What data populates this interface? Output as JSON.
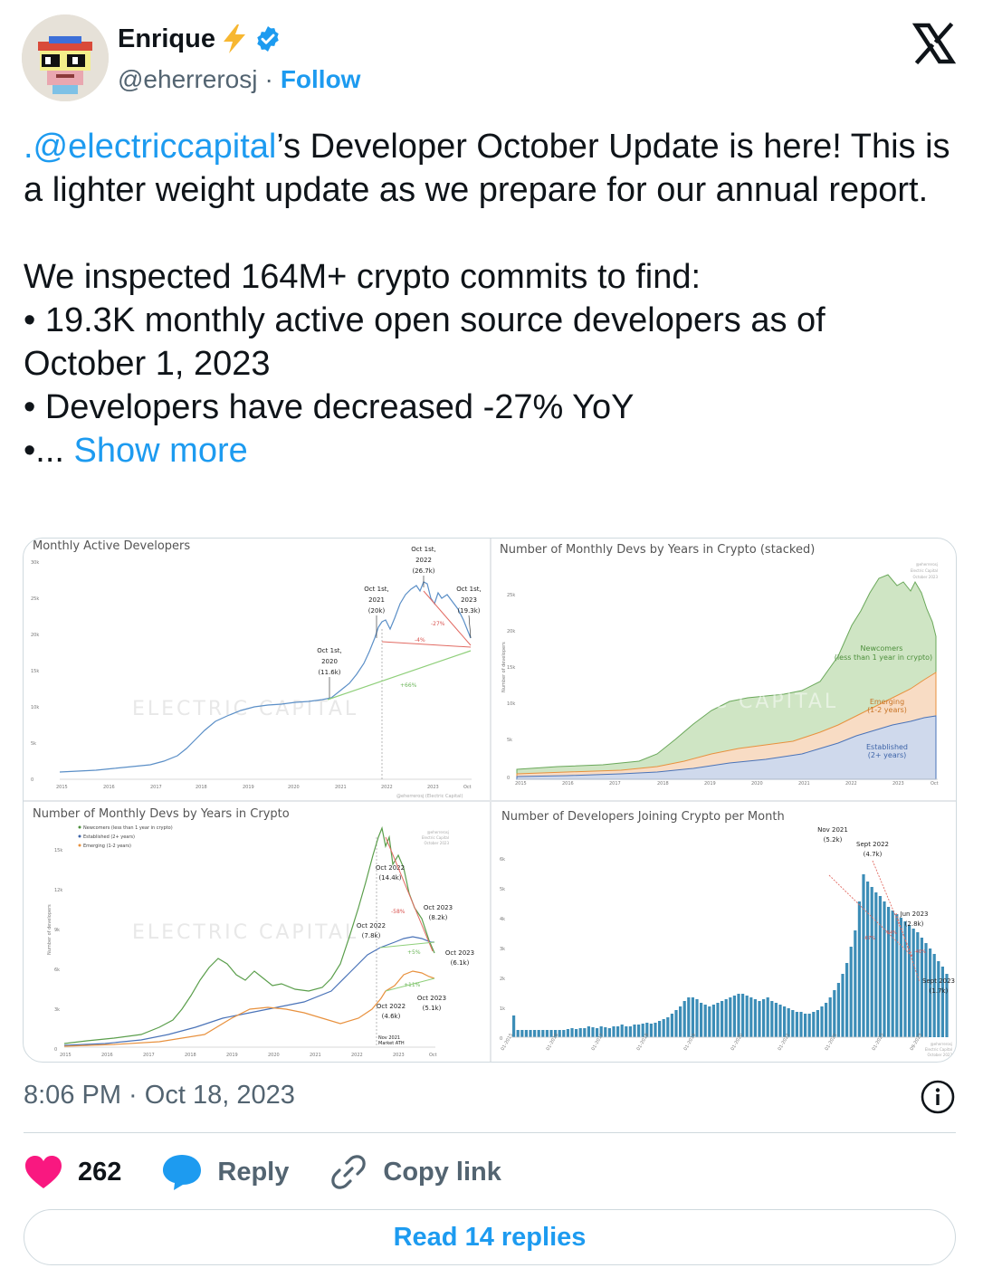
{
  "author": {
    "display_name": "Enrique",
    "handle": "@eherrerosj",
    "separator": "·",
    "follow_label": "Follow",
    "verified": true,
    "emoji": "lightning-icon"
  },
  "tweet": {
    "mention": ".@electriccapital",
    "text_line1_rest": "’s Developer October Update is here! This is a lighter weight update as we prepare for our annual report.",
    "para2_intro": "We inspected 164M+ crypto commits to find:",
    "bullet1": "• 19.3K monthly active open source developers as of October 1, 2023",
    "bullet2": "• Developers have decreased -27% YoY",
    "bullet3_prefix": "•...",
    "show_more": "Show more"
  },
  "media": {
    "watermark": "ELECTRIC CAPITAL",
    "chart1": {
      "title": "Monthly Active Developers",
      "y_ticks": [
        "30k",
        "25k",
        "20k",
        "15k",
        "10k",
        "5k",
        "0"
      ],
      "x_ticks": [
        "2015",
        "2016",
        "2017",
        "2018",
        "2019",
        "2020",
        "2021",
        "2022",
        "2023",
        "Oct"
      ],
      "ann_2020_l1": "Oct 1st,",
      "ann_2020_l2": "2020",
      "ann_2020_l3": "(11.6k)",
      "ann_2021_l1": "Oct 1st,",
      "ann_2021_l2": "2021",
      "ann_2021_l3": "(20k)",
      "ann_2022_l1": "Oct 1st,",
      "ann_2022_l2": "2022",
      "ann_2022_l3": "(26.7k)",
      "ann_2023_l1": "Oct 1st,",
      "ann_2023_l2": "2023",
      "ann_2023_l3": "(19.3k)",
      "pct_27": "-27%",
      "pct_4": "-4%",
      "pct_66": "+66%",
      "credit": "@eherrerosj (Electric Capital)"
    },
    "chart2": {
      "title": "Number of Monthly Devs by Years in Crypto (stacked)",
      "y_ticks": [
        "25k",
        "20k",
        "15k",
        "10k",
        "5k",
        "0"
      ],
      "y_label": "Number of developers",
      "x_ticks": [
        "2015",
        "2016",
        "2017",
        "2018",
        "2019",
        "2020",
        "2021",
        "2022",
        "2023",
        "Oct"
      ],
      "new_l1": "Newcomers",
      "new_l2": "(less than 1 year in crypto)",
      "emer_l1": "Emerging",
      "emer_l2": "(1-2 years)",
      "est_l1": "Established",
      "est_l2": "(2+ years)",
      "credit_l1": "@eherrerosj",
      "credit_l2": "Electric Capital",
      "credit_l3": "October 2023"
    },
    "chart3": {
      "title": "Number of Monthly Devs by Years in Crypto",
      "legend": [
        "Newcomers (less than 1 year in crypto)",
        "Established (2+ years)",
        "Emerging (1-2 years)"
      ],
      "y_ticks": [
        "15k",
        "12k",
        "9k",
        "6k",
        "3k",
        "0"
      ],
      "y_label": "Number of developers",
      "x_ticks": [
        "2015",
        "2016",
        "2017",
        "2018",
        "2019",
        "2020",
        "2021",
        "2022",
        "2023",
        "Oct"
      ],
      "a1_l1": "Oct 2022",
      "a1_l2": "(14.4k)",
      "a2_l1": "Oct 2023",
      "a2_l2": "(8.2k)",
      "a3_l1": "Oct 2022",
      "a3_l2": "(7.8k)",
      "a4_l1": "Oct 2023",
      "a4_l2": "(6.1k)",
      "a5_l1": "Oct 2022",
      "a5_l2": "(4.6k)",
      "a6_l1": "Oct 2023",
      "a6_l2": "(5.1k)",
      "p58": "-58%",
      "p5": "+5%",
      "p11": "+11%",
      "nov_l1": "Nov 2021",
      "nov_l2": "Market ATH",
      "credit_l1": "@eherrerosj",
      "credit_l2": "Electric Capital",
      "credit_l3": "October 2023"
    },
    "chart4": {
      "title": "Number of Developers Joining Crypto per Month",
      "y_ticks": [
        "6k",
        "5k",
        "4k",
        "3k",
        "2k",
        "1k",
        "0"
      ],
      "x_ticks": [
        "01-2015",
        "01-2016",
        "01-2017",
        "01-2018",
        "01-2019",
        "01-2020",
        "01-2021",
        "01-2022",
        "01-2023",
        "09-2023"
      ],
      "b1_l1": "Nov 2021",
      "b1_l2": "(5.2k)",
      "b2_l1": "Sept 2022",
      "b2_l2": "(4.7k)",
      "b3_l1": "Jun 2023",
      "b3_l2": "(2.8k)",
      "b4_l1": "Sept 2023",
      "b4_l2": "(1.7k)",
      "p67": "-67%",
      "p64": "-64%",
      "p40": "-40%",
      "credit_l1": "@eherrerosj",
      "credit_l2": "Electric Capital",
      "credit_l3": "October 2023"
    }
  },
  "meta": {
    "timestamp": "8:06 PM · Oct 18, 2023"
  },
  "actions": {
    "likes": "262",
    "reply": "Reply",
    "copy": "Copy link",
    "read_replies": "Read 14 replies"
  },
  "colors": {
    "accent": "#1d9bf0",
    "like": "#f91880",
    "green": "#5a9e4b",
    "orange": "#e8913e",
    "blue": "#4a73b8",
    "bar": "#3c8db7"
  }
}
